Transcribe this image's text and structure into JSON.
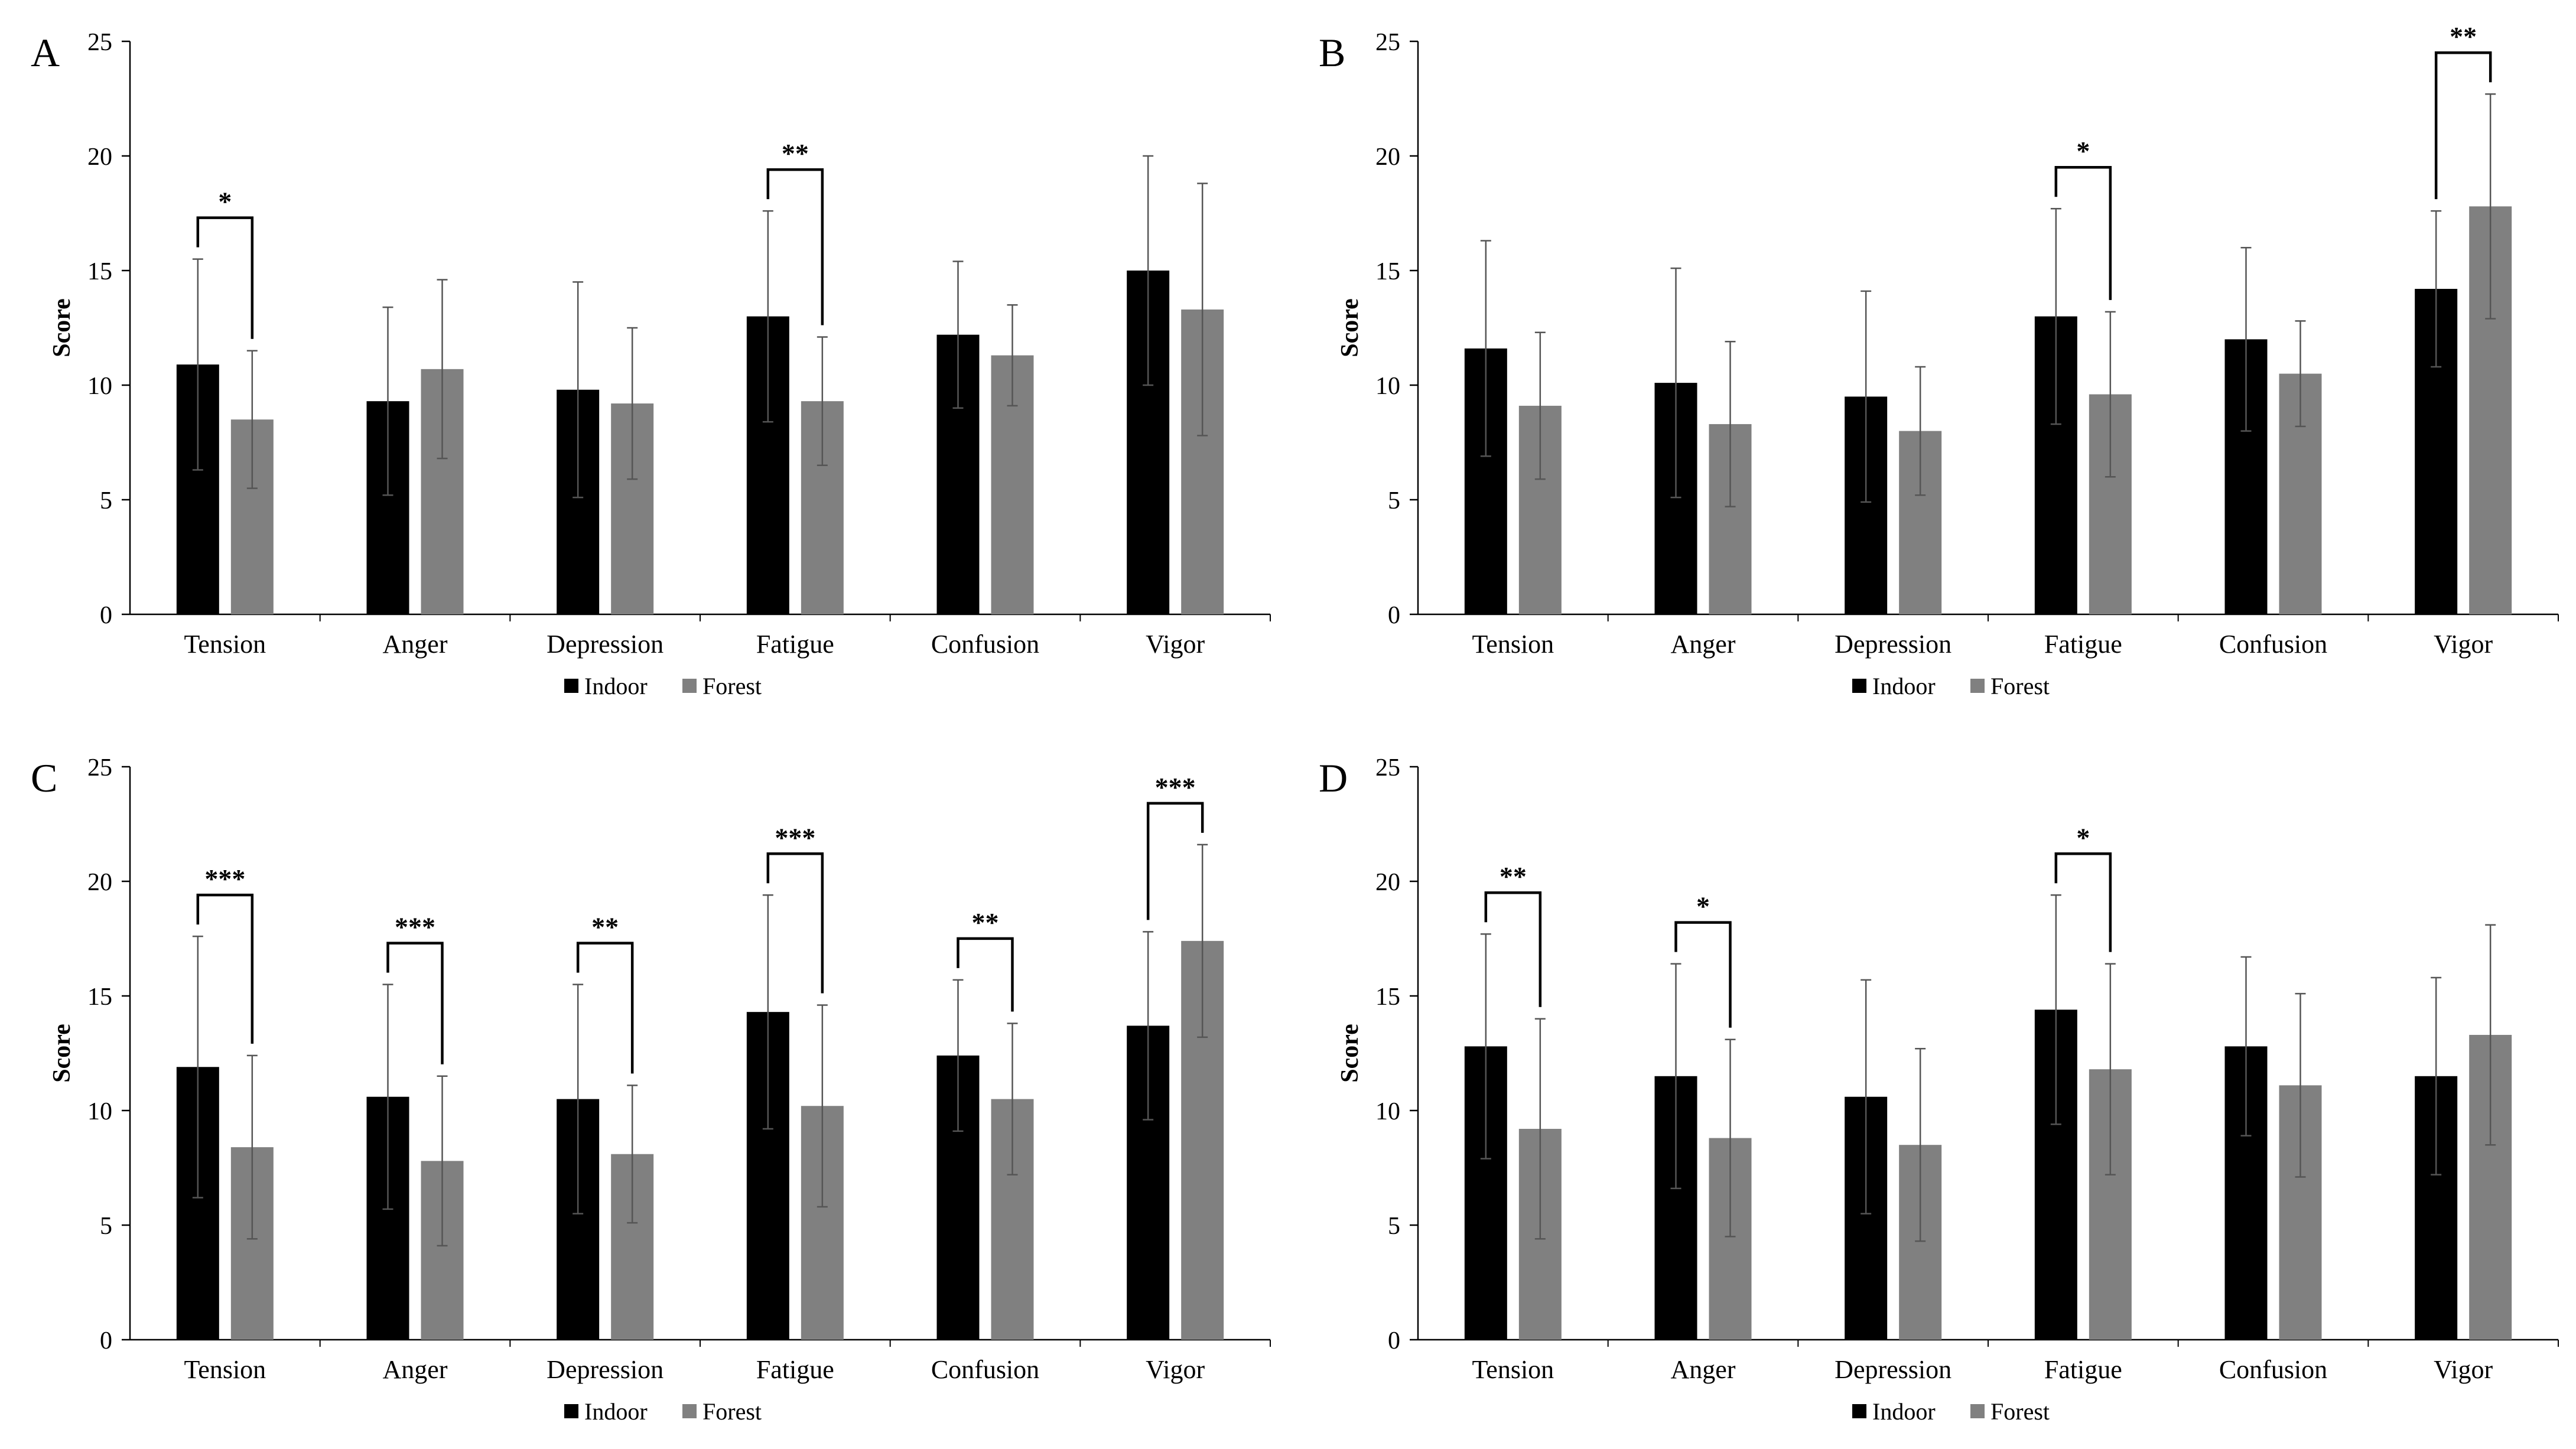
{
  "colors": {
    "indoor": "#000000",
    "forest": "#808080",
    "axis": "#000000",
    "error_bar": "#555555"
  },
  "chart_data": [
    {
      "panel": "A",
      "type": "bar",
      "ylabel": "Score",
      "ylim": [
        0,
        25
      ],
      "yticks": [
        "0",
        "5",
        "10",
        "15",
        "20",
        "25"
      ],
      "categories": [
        "Tension",
        "Anger",
        "Depression",
        "Fatigue",
        "Confusion",
        "Vigor"
      ],
      "legend": [
        "Indoor",
        "Forest"
      ],
      "legend_position": "bottom-center",
      "series": [
        {
          "name": "Indoor",
          "values": [
            10.9,
            9.3,
            9.8,
            13.0,
            12.2,
            15.0
          ],
          "sd": [
            4.6,
            4.1,
            4.7,
            4.6,
            3.2,
            5.0
          ]
        },
        {
          "name": "Forest",
          "values": [
            8.5,
            10.7,
            9.2,
            9.3,
            11.3,
            13.3
          ],
          "sd": [
            3.0,
            3.9,
            3.3,
            2.8,
            2.2,
            5.5
          ]
        }
      ],
      "significance": [
        {
          "category": "Tension",
          "label": "*"
        },
        {
          "category": "Fatigue",
          "label": "**"
        }
      ]
    },
    {
      "panel": "B",
      "type": "bar",
      "ylabel": "Score",
      "ylim": [
        0,
        25
      ],
      "yticks": [
        "0",
        "5",
        "10",
        "15",
        "20",
        "25"
      ],
      "categories": [
        "Tension",
        "Anger",
        "Depression",
        "Fatigue",
        "Confusion",
        "Vigor"
      ],
      "legend": [
        "Indoor",
        "Forest"
      ],
      "legend_position": "bottom-center",
      "series": [
        {
          "name": "Indoor",
          "values": [
            11.6,
            10.1,
            9.5,
            13.0,
            12.0,
            14.2
          ],
          "sd": [
            4.7,
            5.0,
            4.6,
            4.7,
            4.0,
            3.4
          ]
        },
        {
          "name": "Forest",
          "values": [
            9.1,
            8.3,
            8.0,
            9.6,
            10.5,
            17.8
          ],
          "sd": [
            3.2,
            3.6,
            2.8,
            3.6,
            2.3,
            4.9
          ]
        }
      ],
      "significance": [
        {
          "category": "Fatigue",
          "label": "*"
        },
        {
          "category": "Vigor",
          "label": "**"
        }
      ]
    },
    {
      "panel": "C",
      "type": "bar",
      "ylabel": "Score",
      "ylim": [
        0,
        25
      ],
      "yticks": [
        "0",
        "5",
        "10",
        "15",
        "20",
        "25"
      ],
      "categories": [
        "Tension",
        "Anger",
        "Depression",
        "Fatigue",
        "Confusion",
        "Vigor"
      ],
      "legend": [
        "Indoor",
        "Forest"
      ],
      "legend_position": "bottom-center",
      "series": [
        {
          "name": "Indoor",
          "values": [
            11.9,
            10.6,
            10.5,
            14.3,
            12.4,
            13.7
          ],
          "sd": [
            5.7,
            4.9,
            5.0,
            5.1,
            3.3,
            4.1
          ]
        },
        {
          "name": "Forest",
          "values": [
            8.4,
            7.8,
            8.1,
            10.2,
            10.5,
            17.4
          ],
          "sd": [
            4.0,
            3.7,
            3.0,
            4.4,
            3.3,
            4.2
          ]
        }
      ],
      "significance": [
        {
          "category": "Tension",
          "label": "***"
        },
        {
          "category": "Anger",
          "label": "***"
        },
        {
          "category": "Depression",
          "label": "**"
        },
        {
          "category": "Fatigue",
          "label": "***"
        },
        {
          "category": "Confusion",
          "label": "**"
        },
        {
          "category": "Vigor",
          "label": "***"
        }
      ]
    },
    {
      "panel": "D",
      "type": "bar",
      "ylabel": "Score",
      "ylim": [
        0,
        25
      ],
      "yticks": [
        "0",
        "5",
        "10",
        "15",
        "20",
        "25"
      ],
      "categories": [
        "Tension",
        "Anger",
        "Depression",
        "Fatigue",
        "Confusion",
        "Vigor"
      ],
      "legend": [
        "Indoor",
        "Forest"
      ],
      "legend_position": "bottom-center",
      "series": [
        {
          "name": "Indoor",
          "values": [
            12.8,
            11.5,
            10.6,
            14.4,
            12.8,
            11.5
          ],
          "sd": [
            4.9,
            4.9,
            5.1,
            5.0,
            3.9,
            4.3
          ]
        },
        {
          "name": "Forest",
          "values": [
            9.2,
            8.8,
            8.5,
            11.8,
            11.1,
            13.3
          ],
          "sd": [
            4.8,
            4.3,
            4.2,
            4.6,
            4.0,
            4.8
          ]
        }
      ],
      "significance": [
        {
          "category": "Tension",
          "label": "**"
        },
        {
          "category": "Anger",
          "label": "*"
        },
        {
          "category": "Fatigue",
          "label": "*"
        }
      ]
    }
  ]
}
